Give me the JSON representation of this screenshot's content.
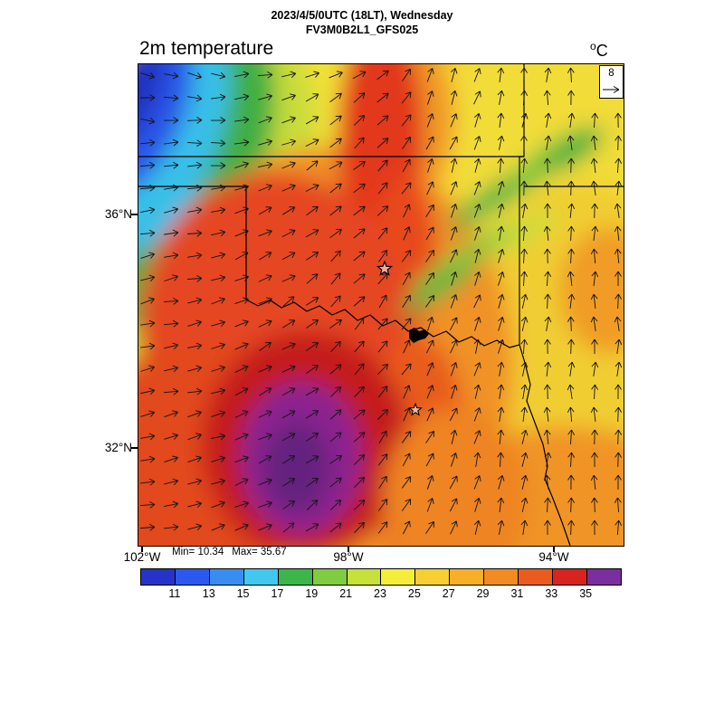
{
  "header": {
    "title_line1": "2023/4/5/0UTC (18LT), Wednesday",
    "title_line2": "FV3M0B2L1_GFS025"
  },
  "plot": {
    "title": "2m temperature",
    "units_sup": "o",
    "units_main": "C"
  },
  "vector_legend": {
    "value": "8"
  },
  "axes": {
    "lat_ticks": [
      "36°N",
      "32°N"
    ],
    "lon_ticks": [
      "102°W",
      "98°W",
      "94°W"
    ]
  },
  "stats": {
    "min": "Min= 10.34",
    "max": "Max= 35.67"
  },
  "colorbar": {
    "labels": [
      "11",
      "13",
      "15",
      "17",
      "19",
      "21",
      "23",
      "25",
      "27",
      "29",
      "31",
      "33",
      "35"
    ],
    "colors": [
      "#2633c8",
      "#2b59f0",
      "#3a8df0",
      "#41c8ee",
      "#3cb649",
      "#7fcc42",
      "#c6e03c",
      "#f4ee3a",
      "#f7cf32",
      "#f7ae2a",
      "#f28c22",
      "#ea5c1d",
      "#d8231e",
      "#7b2f9e"
    ]
  },
  "chart_data": {
    "type": "heatmap",
    "title": "2m temperature",
    "units": "°C",
    "datetime": "2023/4/5/0UTC (18LT), Wednesday",
    "model": "FV3M0B2L1_GFS025",
    "min_value": 10.34,
    "max_value": 35.67,
    "colorbar_ticks": [
      11,
      13,
      15,
      17,
      19,
      21,
      23,
      25,
      27,
      29,
      31,
      33,
      35
    ],
    "lat_tick_labels": [
      "36°N",
      "32°N"
    ],
    "lon_tick_labels": [
      "102°W",
      "98°W",
      "94°W"
    ],
    "wind_vector_reference": 8,
    "overlay": "wind vectors over Texas/Oklahoma region with state borders",
    "legend_position": "bottom colorbar"
  }
}
